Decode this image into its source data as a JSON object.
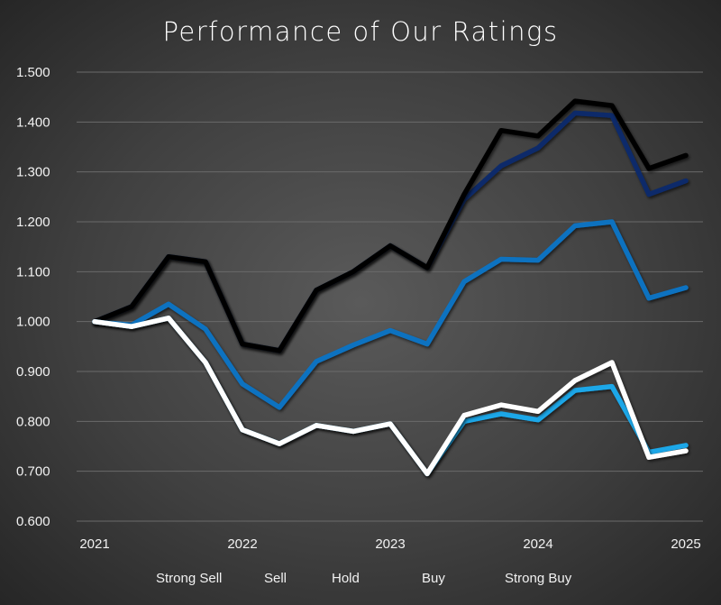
{
  "chart_data": {
    "type": "line",
    "title": "Performance of Our Ratings",
    "xlabel": "",
    "ylabel": "",
    "x": [
      2021,
      2021.25,
      2021.5,
      2021.75,
      2022,
      2022.25,
      2022.5,
      2022.75,
      2023,
      2023.25,
      2023.5,
      2023.75,
      2024,
      2024.25,
      2024.5,
      2024.75,
      2025
    ],
    "x_ticks": [
      "2021",
      "2022",
      "2023",
      "2024",
      "2025"
    ],
    "y_ticks": [
      "0.600",
      "0.700",
      "0.800",
      "0.900",
      "1.000",
      "1.100",
      "1.200",
      "1.300",
      "1.400",
      "1.500"
    ],
    "ylim": [
      0.6,
      1.5
    ],
    "xlim": [
      2021,
      2025
    ],
    "grid": "horizontal",
    "legend_position": "bottom",
    "series": [
      {
        "name": "Strong Sell",
        "color": "#ffffff",
        "values": [
          1.0,
          0.99,
          1.007,
          0.918,
          0.783,
          0.755,
          0.792,
          0.78,
          0.795,
          0.695,
          0.812,
          0.833,
          0.82,
          0.882,
          0.918,
          0.728,
          0.741
        ]
      },
      {
        "name": "Sell",
        "color": "#1aa7e8",
        "values": [
          1.0,
          0.99,
          1.007,
          0.918,
          0.783,
          0.755,
          0.792,
          0.78,
          0.795,
          0.695,
          0.8,
          0.815,
          0.803,
          0.862,
          0.87,
          0.738,
          0.752
        ]
      },
      {
        "name": "Hold",
        "color": "#0b72c0",
        "values": [
          1.0,
          0.993,
          1.035,
          0.985,
          0.875,
          0.828,
          0.92,
          0.953,
          0.982,
          0.955,
          1.08,
          1.125,
          1.123,
          1.192,
          1.2,
          1.047,
          1.068
        ]
      },
      {
        "name": "Buy",
        "color": "#0a2a6a",
        "values": [
          1.0,
          1.03,
          1.13,
          1.12,
          0.955,
          0.942,
          1.063,
          1.1,
          1.152,
          1.108,
          1.245,
          1.312,
          1.348,
          1.418,
          1.413,
          1.255,
          1.282
        ]
      },
      {
        "name": "Strong Buy",
        "color": "#000000",
        "values": [
          1.0,
          1.03,
          1.13,
          1.12,
          0.955,
          0.942,
          1.063,
          1.1,
          1.152,
          1.108,
          1.255,
          1.383,
          1.372,
          1.442,
          1.433,
          1.307,
          1.333
        ]
      }
    ]
  }
}
